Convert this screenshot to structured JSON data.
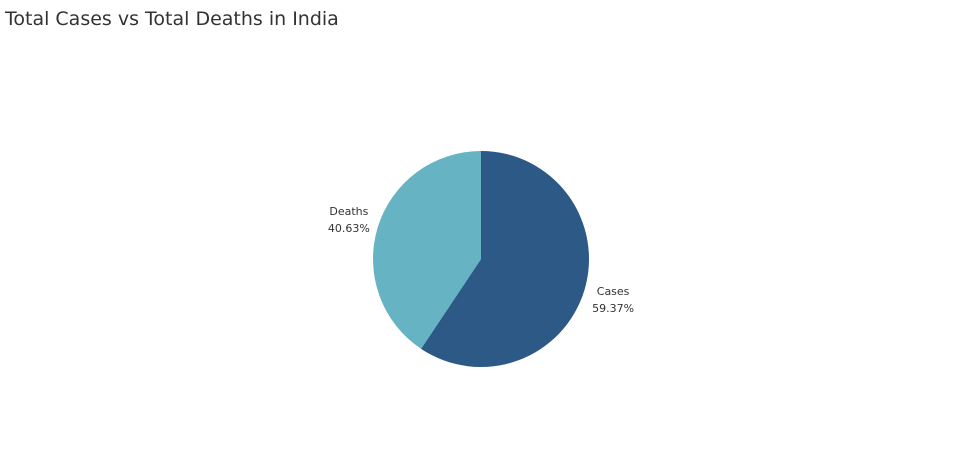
{
  "chart_data": {
    "type": "pie",
    "title": "Total Cases vs Total Deaths in India",
    "slices": [
      {
        "label": "Cases",
        "value": 59.37,
        "value_label": "59.37%",
        "color": "#2c5985"
      },
      {
        "label": "Deaths",
        "value": 40.63,
        "value_label": "40.63%",
        "color": "#66b3c3"
      }
    ],
    "legend": "none",
    "grid": false
  }
}
